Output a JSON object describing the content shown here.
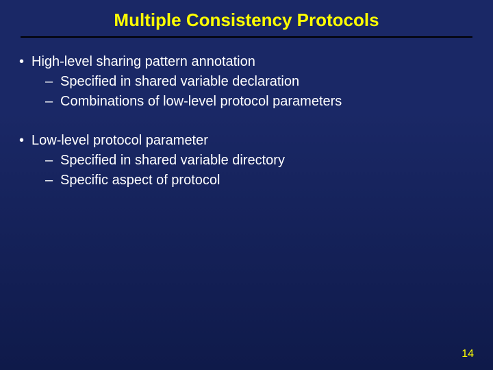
{
  "slide": {
    "title": "Multiple Consistency Protocols",
    "page_number": "14",
    "colors": {
      "background_top": "#1a2866",
      "background_bottom": "#0f1a4a",
      "title_color": "#ffff00",
      "text_color": "#ffffff",
      "rule_color": "#000000",
      "page_number_color": "#ffff00"
    },
    "typography": {
      "title_fontsize": 26,
      "title_weight": "bold",
      "body_fontsize": 20,
      "page_number_fontsize": 16,
      "font_family": "Arial"
    },
    "bullets": [
      {
        "text": "High-level sharing pattern annotation",
        "subs": [
          "Specified in shared variable declaration",
          "Combinations of low-level protocol parameters"
        ]
      },
      {
        "text": "Low-level protocol parameter",
        "subs": [
          "Specified in shared variable directory",
          "Specific aspect of protocol"
        ]
      }
    ],
    "markers": {
      "bullet": "•",
      "sub": "–"
    }
  }
}
